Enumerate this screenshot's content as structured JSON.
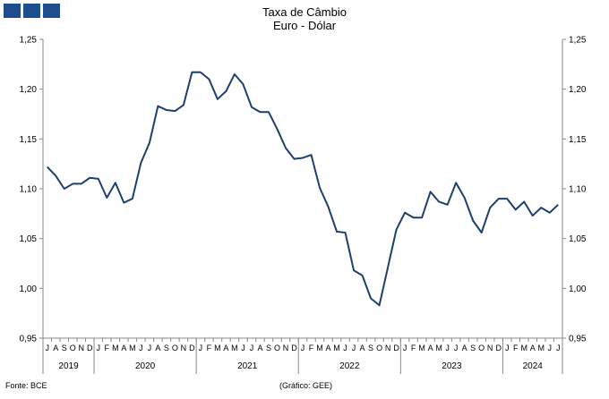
{
  "header": {
    "title_line1": "Taxa de Câmbio",
    "title_line2": "Euro - Dólar"
  },
  "footer": {
    "source": "Fonte: BCE",
    "credit": "(Gráfico: GEE)"
  },
  "colors": {
    "line": "#1f3f6e",
    "logo": "#1f4e8c"
  },
  "chart_data": {
    "type": "line",
    "title": "Taxa de Câmbio Euro - Dólar",
    "xlabel": "",
    "ylabel": "",
    "ylim": [
      0.95,
      1.25
    ],
    "yticks": [
      "0,95",
      "1,00",
      "1,05",
      "1,10",
      "1,15",
      "1,20",
      "1,25"
    ],
    "dual_y_axis": true,
    "grid": false,
    "months": [
      "J",
      "A",
      "S",
      "O",
      "N",
      "D",
      "J",
      "F",
      "M",
      "A",
      "M",
      "J",
      "J",
      "A",
      "S",
      "O",
      "N",
      "D",
      "J",
      "F",
      "M",
      "A",
      "M",
      "J",
      "J",
      "A",
      "S",
      "O",
      "N",
      "D",
      "J",
      "F",
      "M",
      "A",
      "M",
      "J",
      "J",
      "A",
      "S",
      "O",
      "N",
      "D",
      "J",
      "F",
      "M",
      "A",
      "M",
      "J",
      "J",
      "A",
      "S",
      "O",
      "N",
      "D",
      "J",
      "F",
      "M",
      "A",
      "M",
      "J",
      "J"
    ],
    "years": [
      {
        "label": "2019",
        "start": 0,
        "count": 6
      },
      {
        "label": "2020",
        "start": 6,
        "count": 12
      },
      {
        "label": "2021",
        "start": 18,
        "count": 12
      },
      {
        "label": "2022",
        "start": 30,
        "count": 12
      },
      {
        "label": "2023",
        "start": 42,
        "count": 12
      },
      {
        "label": "2024",
        "start": 54,
        "count": 7
      }
    ],
    "series": [
      {
        "values": [
          1.122,
          1.113,
          1.1,
          1.105,
          1.105,
          1.111,
          1.11,
          1.091,
          1.106,
          1.086,
          1.09,
          1.126,
          1.146,
          1.183,
          1.179,
          1.178,
          1.184,
          1.217,
          1.217,
          1.21,
          1.19,
          1.198,
          1.215,
          1.205,
          1.182,
          1.177,
          1.177,
          1.16,
          1.141,
          1.13,
          1.131,
          1.134,
          1.101,
          1.082,
          1.057,
          1.056,
          1.018,
          1.013,
          0.99,
          0.983,
          1.021,
          1.059,
          1.076,
          1.071,
          1.071,
          1.097,
          1.087,
          1.084,
          1.106,
          1.091,
          1.068,
          1.056,
          1.081,
          1.09,
          1.09,
          1.079,
          1.087,
          1.073,
          1.081,
          1.076,
          1.084
        ]
      }
    ]
  }
}
